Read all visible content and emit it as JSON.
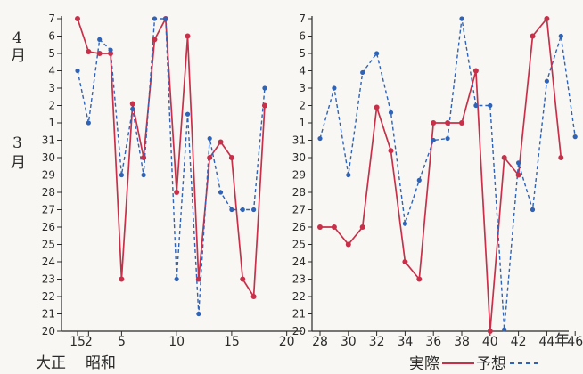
{
  "chart_data": {
    "type": "line",
    "y_axis": {
      "ticks": [
        "20",
        "21",
        "22",
        "23",
        "24",
        "25",
        "26",
        "27",
        "28",
        "29",
        "30",
        "31",
        "1",
        "2",
        "3",
        "4",
        "5",
        "6",
        "7"
      ],
      "month_labels": [
        {
          "num": "3",
          "unit": "月",
          "at_tick": 11
        },
        {
          "num": "4",
          "unit": "月",
          "at_tick": 15
        }
      ]
    },
    "era_labels": [
      "大正",
      "昭和"
    ],
    "year_unit": "年",
    "legend": {
      "actual_label": "実際",
      "forecast_label": "予想"
    },
    "colors": {
      "actual": "#c8304a",
      "forecast": "#2e63b8",
      "axis": "#2a2a2a"
    },
    "panels": [
      {
        "x_ticks": [
          {
            "label": "15",
            "at": 0
          },
          {
            "label": "2",
            "at": 1
          },
          {
            "label": "5",
            "at": 4
          },
          {
            "label": "10",
            "at": 9
          },
          {
            "label": "15",
            "at": 14
          },
          {
            "label": "20",
            "at": 19
          }
        ],
        "series": [
          {
            "name": "実際",
            "values": [
              18,
              16.1,
              16,
              16,
              3,
              13.1,
              10,
              16.8,
              18,
              8,
              17,
              3,
              10,
              10.9,
              10,
              3,
              2,
              13
            ]
          },
          {
            "name": "予想",
            "values": [
              15,
              12,
              16.8,
              16.2,
              9,
              12.8,
              9,
              18,
              18,
              3,
              12.5,
              1,
              11.1,
              8,
              7,
              7,
              7,
              14
            ]
          }
        ]
      },
      {
        "x_ticks": [
          {
            "label": "28",
            "at": 0
          },
          {
            "label": "30",
            "at": 2
          },
          {
            "label": "32",
            "at": 4
          },
          {
            "label": "34",
            "at": 6
          },
          {
            "label": "36",
            "at": 8
          },
          {
            "label": "38",
            "at": 10
          },
          {
            "label": "40",
            "at": 12
          },
          {
            "label": "42",
            "at": 14
          },
          {
            "label": "44",
            "at": 16
          },
          {
            "label": "46",
            "at": 18
          }
        ],
        "series": [
          {
            "name": "実際",
            "values": [
              6,
              6,
              5,
              6,
              12.9,
              10.4,
              4,
              3,
              12,
              12,
              12,
              15,
              0,
              10,
              9,
              17,
              18,
              10
            ]
          },
          {
            "name": "予想",
            "values": [
              11.1,
              14,
              9,
              14.9,
              16,
              12.6,
              6.2,
              8.7,
              11,
              11.1,
              18,
              13,
              13,
              0.1,
              9.7,
              7,
              14.4,
              17,
              11.2
            ]
          }
        ]
      }
    ]
  }
}
